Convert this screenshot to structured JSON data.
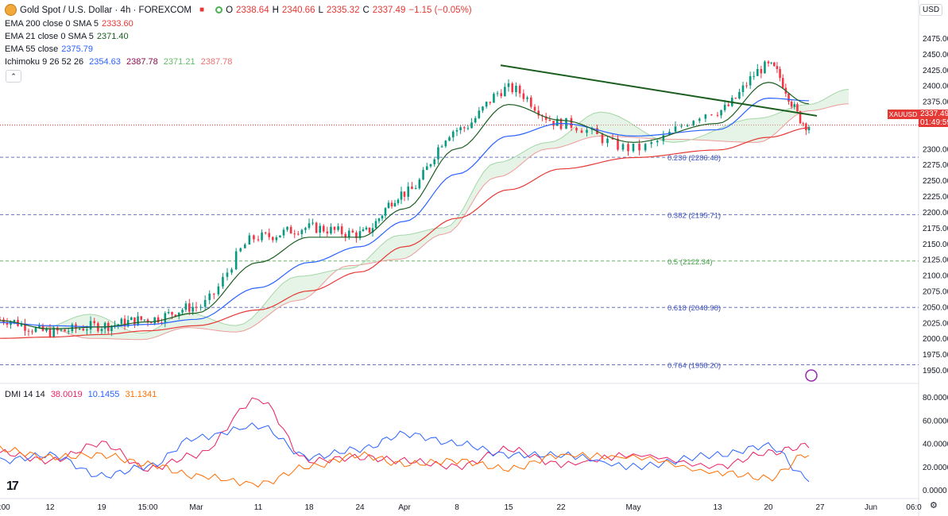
{
  "header": {
    "symbol": "Gold Spot / U.S. Dollar · 4h · FOREXCOM",
    "o_label": "O",
    "o": "2338.64",
    "h_label": "H",
    "h": "2340.66",
    "l_label": "L",
    "l": "2335.32",
    "c_label": "C",
    "c": "2337.49",
    "change": "−1.15 (−0.05%)"
  },
  "indicators": [
    {
      "label": "EMA 200 close 0 SMA 5",
      "value": "2333.60",
      "color": "#e53935"
    },
    {
      "label": "EMA 21 close 0 SMA 5",
      "value": "2371.40",
      "color": "#1b5e20"
    },
    {
      "label": "EMA 55 close",
      "value": "2375.79",
      "color": "#2962ff"
    },
    {
      "label": "Ichimoku 9 26 52 26",
      "values": [
        "2354.63",
        "2387.78",
        "2371.21",
        "2387.78"
      ],
      "colors": [
        "#2962ff",
        "#880e4f",
        "#66bb6a",
        "#e57373"
      ]
    }
  ],
  "dmi": {
    "label": "DMI 14 14",
    "values": [
      "38.0019",
      "10.1455",
      "31.1341"
    ],
    "colors": [
      "#e91e63",
      "#2962ff",
      "#ff6d00"
    ]
  },
  "price_axis": {
    "currency": "USD",
    "ticks": [
      "2475.00",
      "2450.00",
      "2425.00",
      "2400.00",
      "2375.00",
      "2350.00",
      "2300.00",
      "2275.00",
      "2250.00",
      "2225.00",
      "2200.00",
      "2175.00",
      "2150.00",
      "2125.00",
      "2100.00",
      "2075.00",
      "2050.00",
      "2025.00",
      "2000.00",
      "1975.00",
      "1950.00"
    ],
    "tick_values": [
      2475,
      2450,
      2425,
      2400,
      2375,
      2350,
      2300,
      2275,
      2250,
      2225,
      2200,
      2175,
      2150,
      2125,
      2100,
      2075,
      2050,
      2025,
      2000,
      1975,
      1950
    ],
    "current_symbol": "XAUUSD",
    "current_price": "2337.49",
    "countdown": "01:49:59"
  },
  "dmi_axis": {
    "ticks": [
      "80.0000",
      "60.0000",
      "40.0000",
      "20.0000",
      "0.0000"
    ],
    "tick_values": [
      80,
      60,
      40,
      20,
      0
    ]
  },
  "time_axis": {
    "labels": [
      "6:00",
      "12",
      "19",
      "15:00",
      "Mar",
      "11",
      "18",
      "24",
      "Apr",
      "8",
      "15",
      "22",
      "May",
      "13",
      "20",
      "27",
      "Jun",
      "06:0"
    ]
  },
  "fib_levels": [
    {
      "ratio": "0.236",
      "price": "2286.48",
      "value": 2286.48,
      "color": "#3f51b5"
    },
    {
      "ratio": "0.382",
      "price": "2195.71",
      "value": 2195.71,
      "color": "#3f51b5"
    },
    {
      "ratio": "0.5",
      "price": "2122.34",
      "value": 2122.34,
      "color": "#43a047"
    },
    {
      "ratio": "0.618",
      "price": "2048.98",
      "value": 2048.98,
      "color": "#3f51b5"
    },
    {
      "ratio": "0.764",
      "price": "1958.20",
      "value": 1958.2,
      "color": "#3f51b5"
    }
  ],
  "chart_data": {
    "type": "line",
    "title": "Gold Spot / U.S. Dollar · 4h · FOREXCOM",
    "x": [
      "6:00",
      "12",
      "19",
      "15:00",
      "Mar",
      "11",
      "18",
      "24",
      "Apr",
      "8",
      "15",
      "22",
      "May",
      "13",
      "20",
      "27"
    ],
    "ylim": [
      1940,
      2490
    ],
    "series": [
      {
        "name": "XAUUSD",
        "values": [
          2030,
          2010,
          2020,
          2030,
          2050,
          2160,
          2175,
          2165,
          2230,
          2330,
          2395,
          2340,
          2300,
          2360,
          2430,
          2337
        ]
      },
      {
        "name": "EMA 200 close 0 SMA 5",
        "values": [
          2000,
          2002,
          2006,
          2012,
          2020,
          2045,
          2075,
          2105,
          2145,
          2190,
          2235,
          2268,
          2286,
          2298,
          2318,
          2333
        ]
      },
      {
        "name": "EMA 55 close",
        "values": [
          2025,
          2020,
          2018,
          2022,
          2030,
          2080,
          2120,
          2145,
          2185,
          2260,
          2320,
          2340,
          2320,
          2330,
          2380,
          2376
        ]
      },
      {
        "name": "EMA 21 close 0 SMA 5",
        "values": [
          2028,
          2015,
          2018,
          2026,
          2040,
          2120,
          2160,
          2160,
          2205,
          2300,
          2370,
          2345,
          2310,
          2340,
          2405,
          2371
        ]
      }
    ],
    "trendline": {
      "from": [
        "Apr 12",
        2432
      ],
      "to": [
        "May 25",
        2352
      ]
    },
    "dmi": {
      "x": [
        "6:00",
        "12",
        "19",
        "15:00",
        "Mar",
        "11",
        "18",
        "24",
        "Apr",
        "8",
        "15",
        "22",
        "May",
        "13",
        "20",
        "27"
      ],
      "series": [
        {
          "name": "+DI",
          "values": [
            32,
            25,
            40,
            18,
            30,
            78,
            25,
            28,
            25,
            20,
            35,
            22,
            30,
            20,
            32,
            38
          ]
        },
        {
          "name": "-DI",
          "values": [
            25,
            30,
            12,
            20,
            45,
            55,
            28,
            35,
            48,
            40,
            30,
            30,
            20,
            30,
            38,
            10
          ]
        },
        {
          "name": "ADX",
          "values": [
            35,
            28,
            30,
            22,
            12,
            5,
            20,
            30,
            22,
            25,
            18,
            30,
            28,
            15,
            10,
            31
          ]
        }
      ],
      "ylim": [
        0,
        90
      ]
    }
  }
}
